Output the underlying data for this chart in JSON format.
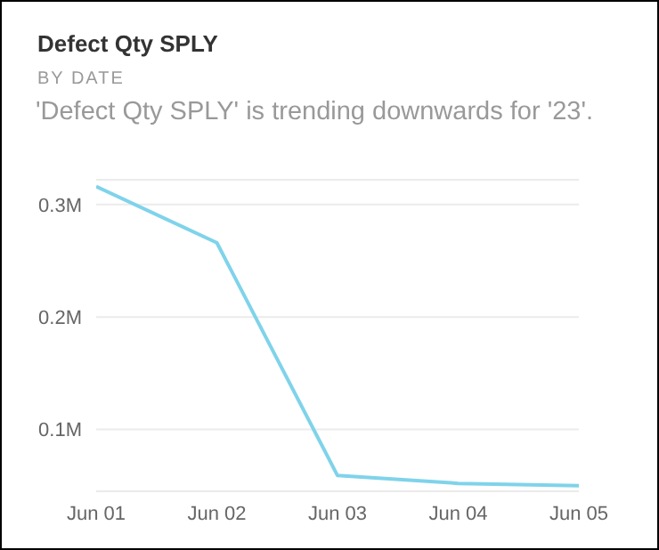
{
  "chart_data": {
    "type": "line",
    "title": "Defect Qty SPLY",
    "subtitle": "BY DATE",
    "annotations": [
      "'Defect Qty SPLY' is trending downwards for '23'."
    ],
    "categories": [
      "Jun 01",
      "Jun 02",
      "Jun 03",
      "Jun 04",
      "Jun 05"
    ],
    "series": [
      {
        "color": "#7fd3ea",
        "values": [
          316000,
          266000,
          59000,
          52000,
          50000
        ]
      }
    ],
    "ylim": [
      45000,
      322000
    ],
    "yticks": [
      {
        "value": 100000,
        "label": "0.1M"
      },
      {
        "value": 200000,
        "label": "0.2M"
      },
      {
        "value": 300000,
        "label": "0.3M"
      }
    ],
    "grid": "y",
    "legend": false,
    "marker": "none",
    "line_style": "solid"
  }
}
